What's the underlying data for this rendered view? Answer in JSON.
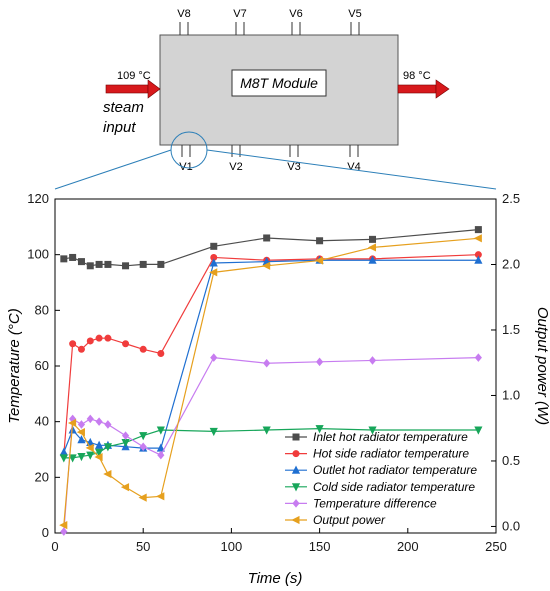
{
  "diagram": {
    "module_label": "M8T Module",
    "inlet_temp": "109 °C",
    "outlet_temp": "98 °C",
    "steam_label_1": "steam",
    "steam_label_2": "input",
    "top_sensors": [
      "V8",
      "V7",
      "V6",
      "V5"
    ],
    "bottom_sensors": [
      "V1",
      "V2",
      "V3",
      "V4"
    ],
    "colors": {
      "module_fill": "#d3d3d3",
      "arrow": "#d7191c",
      "highlight": "#2c7fb8"
    }
  },
  "chart_data": {
    "type": "line",
    "xlabel": "Time (s)",
    "ylabel": "Temperature (°C)",
    "y2label": "Output power (W)",
    "xlim": [
      0,
      250
    ],
    "ylim": [
      0,
      120
    ],
    "y2lim": [
      -0.05,
      2.5
    ],
    "x_ticks": [
      "0",
      "50",
      "100",
      "150",
      "200",
      "250"
    ],
    "y_ticks": [
      "0",
      "20",
      "40",
      "60",
      "80",
      "100",
      "120"
    ],
    "y2_ticks": [
      "0.0",
      "0.5",
      "1.0",
      "1.5",
      "2.0",
      "2.5"
    ],
    "legend_position": "bottom-right",
    "grid": false,
    "series": [
      {
        "name": "Inlet hot radiator temperature",
        "axis": "left",
        "color": "#4d4d4d",
        "marker": "square",
        "x": [
          5,
          10,
          15,
          20,
          25,
          30,
          40,
          50,
          60,
          90,
          120,
          150,
          180,
          240
        ],
        "y": [
          98.5,
          99,
          97.5,
          96,
          96.5,
          96.5,
          96,
          96.5,
          96.5,
          103,
          106,
          105,
          105.5,
          109
        ]
      },
      {
        "name": "Hot side radiator temperature",
        "axis": "left",
        "color": "#f03c3c",
        "marker": "circle",
        "x": [
          5,
          10,
          15,
          20,
          25,
          30,
          40,
          50,
          60,
          90,
          120,
          150,
          180,
          240
        ],
        "y": [
          28,
          68,
          66,
          69,
          70,
          70,
          68,
          66,
          64.5,
          99,
          98,
          98.5,
          98.5,
          100
        ]
      },
      {
        "name": "Outlet hot radiator temperature",
        "axis": "left",
        "color": "#1f6fd1",
        "marker": "triangle-up",
        "x": [
          5,
          10,
          15,
          20,
          25,
          30,
          40,
          50,
          60,
          90,
          120,
          150,
          180,
          240
        ],
        "y": [
          29,
          37,
          33.5,
          32.5,
          31.5,
          31.5,
          31,
          30.5,
          30.5,
          97,
          97.5,
          98,
          98,
          98
        ]
      },
      {
        "name": "Cold side radiator temperature",
        "axis": "left",
        "color": "#17a65a",
        "marker": "triangle-down",
        "x": [
          5,
          10,
          15,
          20,
          25,
          30,
          40,
          50,
          60,
          90,
          120,
          150,
          180,
          240
        ],
        "y": [
          27,
          27,
          27.5,
          28,
          29,
          31,
          32.5,
          35,
          37,
          36.5,
          37,
          37.5,
          37,
          37
        ]
      },
      {
        "name": "Temperature difference",
        "axis": "left",
        "color": "#c77cf0",
        "marker": "diamond",
        "x": [
          5,
          10,
          15,
          20,
          25,
          30,
          40,
          50,
          60,
          90,
          120,
          150,
          180,
          240
        ],
        "y": [
          0.5,
          41,
          39,
          41,
          40,
          39,
          35,
          31,
          28,
          63,
          61,
          61.5,
          62,
          63
        ]
      },
      {
        "name": "Output power",
        "axis": "right",
        "color": "#e6a01e",
        "marker": "triangle-left",
        "x": [
          5,
          10,
          15,
          20,
          25,
          30,
          40,
          50,
          60,
          90,
          120,
          150,
          180,
          240
        ],
        "y": [
          0.01,
          0.79,
          0.72,
          0.6,
          0.53,
          0.4,
          0.3,
          0.22,
          0.23,
          1.94,
          1.99,
          2.03,
          2.13,
          2.2
        ]
      }
    ]
  }
}
